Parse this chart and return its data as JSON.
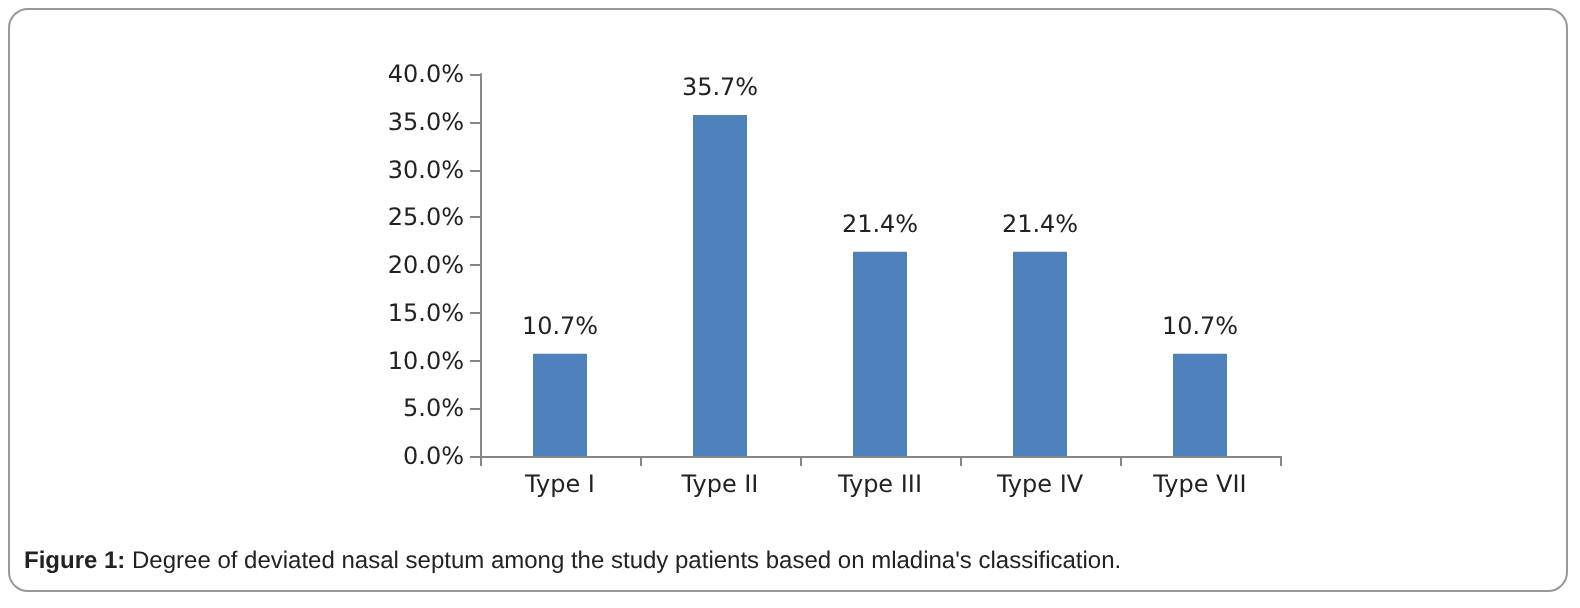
{
  "chart_data": {
    "type": "bar",
    "categories": [
      "Type I",
      "Type II",
      "Type III",
      "Type IV",
      "Type VII"
    ],
    "values": [
      10.7,
      35.7,
      21.4,
      21.4,
      10.7
    ],
    "value_labels": [
      "10.7%",
      "35.7%",
      "21.4%",
      "21.4%",
      "10.7%"
    ],
    "color": "#4f81bd",
    "ylim": [
      0,
      40
    ],
    "yticks": [
      {
        "value": 0,
        "label": "0.0%"
      },
      {
        "value": 5,
        "label": "5.0%"
      },
      {
        "value": 10,
        "label": "10.0%"
      },
      {
        "value": 15,
        "label": "15.0%"
      },
      {
        "value": 20,
        "label": "20.0%"
      },
      {
        "value": 25,
        "label": "25.0%"
      },
      {
        "value": 30,
        "label": "30.0%"
      },
      {
        "value": 35,
        "label": "35.0%"
      },
      {
        "value": 40,
        "label": "40.0%"
      }
    ],
    "grid": false,
    "annotations": [
      "Figure 1: Degree of deviated nasal septum among the study patients based on mladina's classification."
    ]
  }
}
